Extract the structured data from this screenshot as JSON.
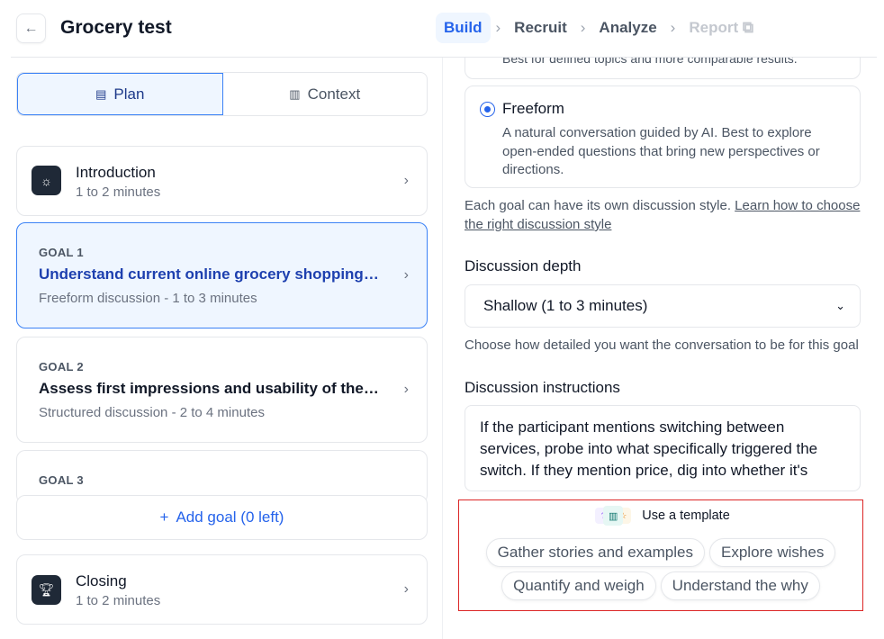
{
  "header": {
    "title": "Grocery test",
    "steps": [
      {
        "label": "Build",
        "state": "active"
      },
      {
        "label": "Recruit",
        "state": "normal"
      },
      {
        "label": "Analyze",
        "state": "normal"
      },
      {
        "label": "Report",
        "state": "disabled"
      }
    ]
  },
  "tabs": [
    {
      "label": "Plan",
      "icon": "document-icon"
    },
    {
      "label": "Context",
      "icon": "book-icon"
    }
  ],
  "intro": {
    "title": "Introduction",
    "sub": "1 to 2 minutes"
  },
  "goals": [
    {
      "label": "GOAL 1",
      "title": "Understand current online grocery shopping h...",
      "sub": "Freeform discussion - 1 to 3 minutes"
    },
    {
      "label": "GOAL 2",
      "title": "Assess first impressions and usability of the re...",
      "sub": "Structured discussion - 2 to 4 minutes"
    },
    {
      "label": "GOAL 3"
    }
  ],
  "add_goal": "Add goal (0 left)",
  "closing": {
    "title": "Closing",
    "sub": "1 to 2 minutes"
  },
  "right": {
    "structured_desc_tail": "Best for defined topics and more comparable results.",
    "freeform": {
      "title": "Freeform",
      "desc": "A natural conversation guided by AI. Best to explore open-ended questions that bring new perspectives or directions."
    },
    "style_note": "Each goal can have its own discussion style.",
    "style_link": "Learn how to choose the right discussion style",
    "depth_label": "Discussion depth",
    "depth_value": "Shallow (1 to 3 minutes)",
    "depth_note": "Choose how detailed you want the conversation to be for this goal",
    "instructions_label": "Discussion instructions",
    "instructions_value": "If the participant mentions switching between services, probe into what specifically triggered the switch. If they mention price, dig into whether it's"
  },
  "template": {
    "label": "Use a template",
    "chips": [
      "Gather stories and examples",
      "Explore wishes",
      "Quantify and weigh",
      "Understand the why"
    ]
  },
  "colors": {
    "accent": "#2563eb",
    "highlight": "#dc2626"
  }
}
